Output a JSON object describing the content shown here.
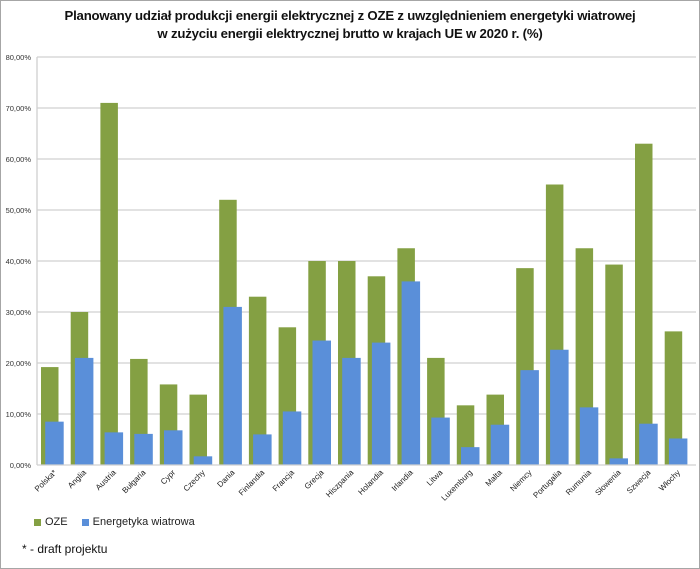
{
  "chart_data": {
    "type": "bar",
    "title_line1": "Planowany udział produkcji energii elektrycznej z OZE z uwzględnieniem energetyki wiatrowej",
    "title_line2": "w zużyciu energii elektrycznej brutto w krajach UE w 2020 r. (%)",
    "xlabel": "",
    "ylabel": "",
    "ylim": [
      0,
      80
    ],
    "yticks": [
      0,
      10,
      20,
      30,
      40,
      50,
      60,
      70,
      80
    ],
    "ytick_labels": [
      "0,00%",
      "10,00%",
      "20,00%",
      "30,00%",
      "40,00%",
      "50,00%",
      "60,00%",
      "70,00%",
      "80,00%"
    ],
    "grid": true,
    "legend_position": "bottom-left",
    "categories": [
      "Polska*",
      "Anglia",
      "Austria",
      "Bułgaria",
      "Cypr",
      "Czechy",
      "Dania",
      "Finlandia",
      "Francja",
      "Grecja",
      "Hiszpania",
      "Holandia",
      "Irlandia",
      "Litwa",
      "Luxemburg",
      "Malta",
      "Niemcy",
      "Portugalia",
      "Rumunia",
      "Słowenia",
      "Szwecja",
      "Włochy"
    ],
    "series": [
      {
        "name": "OZE",
        "color": "#84A043",
        "values": [
          19.2,
          30.0,
          71.0,
          20.8,
          15.8,
          13.8,
          52.0,
          33.0,
          27.0,
          40.0,
          40.0,
          37.0,
          42.5,
          21.0,
          11.7,
          13.8,
          38.6,
          55.0,
          42.5,
          39.3,
          63.0,
          26.2
        ]
      },
      {
        "name": "Energetyka wiatrowa",
        "color": "#5A8FD9",
        "values": [
          8.5,
          21.0,
          6.4,
          6.1,
          6.8,
          1.7,
          31.0,
          6.0,
          10.5,
          24.4,
          21.0,
          24.0,
          36.0,
          9.3,
          3.5,
          7.9,
          18.6,
          22.6,
          11.3,
          1.3,
          8.1,
          5.2
        ]
      }
    ]
  },
  "legend": {
    "items": [
      {
        "label": "OZE",
        "color": "#84A043"
      },
      {
        "label": "Energetyka wiatrowa",
        "color": "#5A8FD9"
      }
    ]
  },
  "footnote": "* - draft projektu"
}
